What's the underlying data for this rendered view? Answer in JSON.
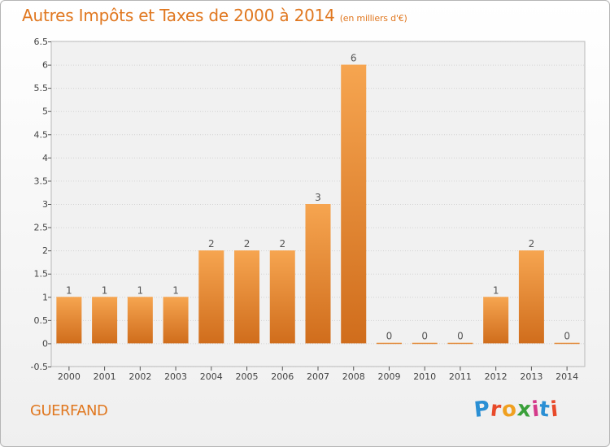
{
  "title": "Autres Impôts et Taxes de 2000 à 2014",
  "subtitle": "(en milliers d'€)",
  "commune": "GUERFAND",
  "logo": {
    "letters": [
      "P",
      "r",
      "o",
      "x",
      "i",
      "t",
      "i"
    ],
    "colors": [
      "#2a8fd4",
      "#e84a2a",
      "#f0a020",
      "#3aa03a",
      "#d43a8a",
      "#2a8fd4",
      "#e84a2a"
    ]
  },
  "chart_data": {
    "type": "bar",
    "categories": [
      "2000",
      "2001",
      "2002",
      "2003",
      "2004",
      "2005",
      "2006",
      "2007",
      "2008",
      "2009",
      "2010",
      "2011",
      "2012",
      "2013",
      "2014"
    ],
    "values": [
      1,
      1,
      1,
      1,
      2,
      2,
      2,
      3,
      6,
      0,
      0,
      0,
      1,
      2,
      0
    ],
    "data_labels": [
      "1",
      "1",
      "1",
      "1",
      "2",
      "2",
      "2",
      "3",
      "6",
      "0",
      "0",
      "0",
      "1",
      "2",
      "0"
    ],
    "y_ticks": [
      "-0.5",
      "0",
      "0.5",
      "1",
      "1.5",
      "2",
      "2.5",
      "3",
      "3.5",
      "4",
      "4.5",
      "5",
      "5.5",
      "6",
      "6.5"
    ],
    "ylim": [
      -0.5,
      6.5
    ],
    "grid": true,
    "bar_color_top": "#f6a550",
    "bar_color_bottom": "#d06d1c",
    "accent_color": "#e0771f"
  }
}
